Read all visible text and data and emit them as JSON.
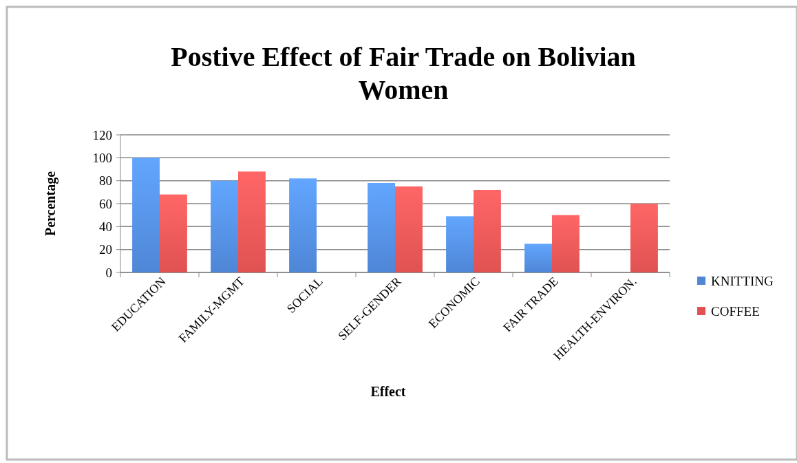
{
  "chart_data": {
    "type": "bar",
    "title": "Postive Effect of Fair Trade on Bolivian Women",
    "xlabel": "Effect",
    "ylabel": "Percentage",
    "categories": [
      "EDUCATION",
      "FAMILY-MGMT",
      "SOCIAL",
      "SELF-GENDER",
      "ECONOMIC",
      "FAIR TRADE",
      "HEALTH-ENVIRON."
    ],
    "series": [
      {
        "name": "KNITTING",
        "color": "#4f86d6",
        "values": [
          100,
          80,
          82,
          78,
          49,
          25,
          null
        ]
      },
      {
        "name": "COFFEE",
        "color": "#e05252",
        "values": [
          68,
          88,
          null,
          75,
          72,
          50,
          60
        ]
      }
    ],
    "ylim": [
      0,
      120
    ],
    "yticks": [
      0,
      20,
      40,
      60,
      80,
      100,
      120
    ],
    "grid": "y",
    "legend": "right"
  }
}
